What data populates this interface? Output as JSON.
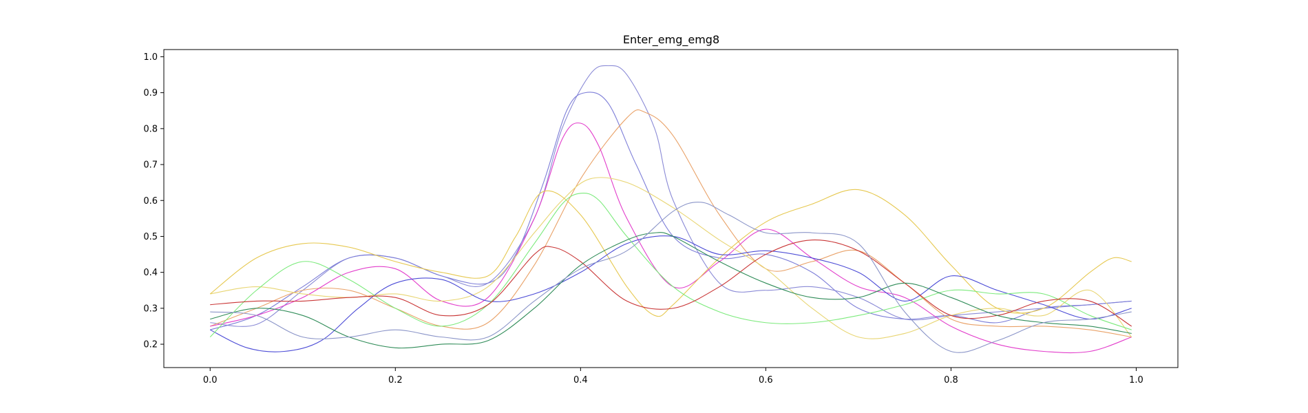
{
  "chart_data": {
    "type": "line",
    "title": "Enter_emg_emg8",
    "xlabel": "",
    "ylabel": "",
    "xlim": [
      -0.05,
      1.045
    ],
    "ylim": [
      0.135,
      1.02
    ],
    "xticks": [
      "0.0",
      "0.2",
      "0.4",
      "0.6",
      "0.8",
      "1.0"
    ],
    "yticks": [
      "0.2",
      "0.3",
      "0.4",
      "0.5",
      "0.6",
      "0.7",
      "0.8",
      "0.9",
      "1.0"
    ],
    "grid": false,
    "legend": "none",
    "series": [
      {
        "color": "#8a8ad6",
        "x": [
          0.0,
          0.05,
          0.1,
          0.15,
          0.2,
          0.25,
          0.3,
          0.35,
          0.38,
          0.41,
          0.43,
          0.45,
          0.48,
          0.5,
          0.55,
          0.6,
          0.65,
          0.7,
          0.75,
          0.8,
          0.85,
          0.9,
          0.95,
          0.995
        ],
        "y": [
          0.26,
          0.255,
          0.35,
          0.44,
          0.44,
          0.39,
          0.37,
          0.55,
          0.8,
          0.95,
          0.975,
          0.95,
          0.8,
          0.6,
          0.37,
          0.35,
          0.36,
          0.33,
          0.27,
          0.28,
          0.29,
          0.3,
          0.31,
          0.32
        ]
      },
      {
        "color": "#7d7ed8",
        "x": [
          0.0,
          0.05,
          0.1,
          0.15,
          0.2,
          0.25,
          0.3,
          0.33,
          0.36,
          0.385,
          0.405,
          0.43,
          0.46,
          0.5,
          0.55,
          0.6,
          0.65,
          0.7,
          0.75,
          0.8,
          0.85,
          0.9,
          0.95,
          0.995
        ],
        "y": [
          0.24,
          0.28,
          0.36,
          0.44,
          0.44,
          0.39,
          0.37,
          0.45,
          0.65,
          0.85,
          0.9,
          0.87,
          0.7,
          0.5,
          0.44,
          0.45,
          0.4,
          0.3,
          0.27,
          0.28,
          0.26,
          0.3,
          0.31,
          0.32
        ]
      },
      {
        "color": "#e9a167",
        "x": [
          0.0,
          0.05,
          0.1,
          0.15,
          0.2,
          0.25,
          0.3,
          0.35,
          0.4,
          0.45,
          0.47,
          0.5,
          0.55,
          0.6,
          0.65,
          0.7,
          0.75,
          0.8,
          0.85,
          0.9,
          0.95,
          0.995
        ],
        "y": [
          0.25,
          0.3,
          0.35,
          0.35,
          0.3,
          0.25,
          0.26,
          0.42,
          0.66,
          0.83,
          0.845,
          0.78,
          0.56,
          0.41,
          0.43,
          0.46,
          0.37,
          0.27,
          0.25,
          0.25,
          0.24,
          0.22
        ]
      },
      {
        "color": "#e23ccb",
        "x": [
          0.0,
          0.05,
          0.1,
          0.15,
          0.2,
          0.25,
          0.3,
          0.35,
          0.38,
          0.4,
          0.42,
          0.45,
          0.5,
          0.55,
          0.6,
          0.65,
          0.7,
          0.75,
          0.8,
          0.85,
          0.9,
          0.95,
          0.995
        ],
        "y": [
          0.25,
          0.28,
          0.33,
          0.4,
          0.41,
          0.32,
          0.33,
          0.55,
          0.77,
          0.815,
          0.75,
          0.55,
          0.36,
          0.43,
          0.52,
          0.44,
          0.36,
          0.33,
          0.25,
          0.2,
          0.18,
          0.18,
          0.22
        ]
      },
      {
        "color": "#e8d572",
        "x": [
          0.0,
          0.05,
          0.1,
          0.15,
          0.2,
          0.25,
          0.3,
          0.35,
          0.38,
          0.41,
          0.45,
          0.5,
          0.55,
          0.6,
          0.65,
          0.7,
          0.75,
          0.8,
          0.85,
          0.9,
          0.95,
          0.995
        ],
        "y": [
          0.34,
          0.36,
          0.34,
          0.33,
          0.34,
          0.32,
          0.36,
          0.51,
          0.6,
          0.66,
          0.65,
          0.58,
          0.49,
          0.41,
          0.3,
          0.22,
          0.23,
          0.28,
          0.3,
          0.28,
          0.35,
          0.22
        ]
      },
      {
        "color": "#e6c84f",
        "x": [
          0.0,
          0.05,
          0.1,
          0.15,
          0.2,
          0.25,
          0.3,
          0.33,
          0.36,
          0.4,
          0.45,
          0.48,
          0.5,
          0.55,
          0.6,
          0.65,
          0.7,
          0.75,
          0.8,
          0.85,
          0.9,
          0.95,
          0.975,
          0.995
        ],
        "y": [
          0.34,
          0.44,
          0.48,
          0.47,
          0.43,
          0.4,
          0.39,
          0.5,
          0.625,
          0.56,
          0.36,
          0.28,
          0.31,
          0.44,
          0.54,
          0.59,
          0.63,
          0.56,
          0.42,
          0.3,
          0.3,
          0.4,
          0.44,
          0.43
        ]
      },
      {
        "color": "#4b4bd6",
        "x": [
          0.0,
          0.04,
          0.08,
          0.12,
          0.16,
          0.2,
          0.25,
          0.3,
          0.35,
          0.4,
          0.45,
          0.5,
          0.55,
          0.6,
          0.65,
          0.7,
          0.75,
          0.8,
          0.85,
          0.9,
          0.95,
          0.995
        ],
        "y": [
          0.24,
          0.19,
          0.18,
          0.21,
          0.3,
          0.37,
          0.38,
          0.32,
          0.34,
          0.4,
          0.48,
          0.5,
          0.45,
          0.46,
          0.44,
          0.4,
          0.32,
          0.39,
          0.35,
          0.31,
          0.27,
          0.3
        ]
      },
      {
        "color": "#7bea7b",
        "x": [
          0.0,
          0.05,
          0.1,
          0.15,
          0.2,
          0.25,
          0.3,
          0.35,
          0.38,
          0.4,
          0.42,
          0.45,
          0.5,
          0.55,
          0.6,
          0.65,
          0.7,
          0.75,
          0.8,
          0.85,
          0.9,
          0.95,
          0.995
        ],
        "y": [
          0.22,
          0.35,
          0.43,
          0.38,
          0.3,
          0.25,
          0.31,
          0.48,
          0.59,
          0.62,
          0.6,
          0.5,
          0.36,
          0.29,
          0.26,
          0.26,
          0.28,
          0.31,
          0.35,
          0.34,
          0.34,
          0.28,
          0.24
        ]
      },
      {
        "color": "#c93535",
        "x": [
          0.0,
          0.05,
          0.1,
          0.15,
          0.2,
          0.25,
          0.3,
          0.35,
          0.37,
          0.4,
          0.45,
          0.5,
          0.55,
          0.6,
          0.65,
          0.7,
          0.75,
          0.8,
          0.85,
          0.9,
          0.95,
          0.995
        ],
        "y": [
          0.31,
          0.32,
          0.32,
          0.33,
          0.33,
          0.28,
          0.31,
          0.45,
          0.47,
          0.43,
          0.32,
          0.3,
          0.36,
          0.45,
          0.49,
          0.46,
          0.37,
          0.28,
          0.28,
          0.32,
          0.32,
          0.25
        ]
      },
      {
        "color": "#2e8b57",
        "x": [
          0.0,
          0.05,
          0.1,
          0.15,
          0.2,
          0.25,
          0.3,
          0.35,
          0.4,
          0.45,
          0.48,
          0.5,
          0.55,
          0.6,
          0.65,
          0.7,
          0.75,
          0.8,
          0.85,
          0.9,
          0.95,
          0.995
        ],
        "y": [
          0.27,
          0.3,
          0.28,
          0.22,
          0.19,
          0.2,
          0.21,
          0.3,
          0.42,
          0.49,
          0.51,
          0.5,
          0.43,
          0.37,
          0.33,
          0.33,
          0.37,
          0.33,
          0.28,
          0.26,
          0.25,
          0.23
        ]
      },
      {
        "color": "#8a94c8",
        "x": [
          0.0,
          0.05,
          0.1,
          0.15,
          0.2,
          0.25,
          0.3,
          0.35,
          0.4,
          0.45,
          0.5,
          0.53,
          0.56,
          0.6,
          0.65,
          0.7,
          0.75,
          0.8,
          0.85,
          0.9,
          0.95,
          0.995
        ],
        "y": [
          0.29,
          0.28,
          0.22,
          0.22,
          0.24,
          0.22,
          0.22,
          0.32,
          0.41,
          0.46,
          0.57,
          0.595,
          0.56,
          0.51,
          0.51,
          0.48,
          0.29,
          0.18,
          0.21,
          0.26,
          0.27,
          0.29
        ]
      }
    ]
  }
}
